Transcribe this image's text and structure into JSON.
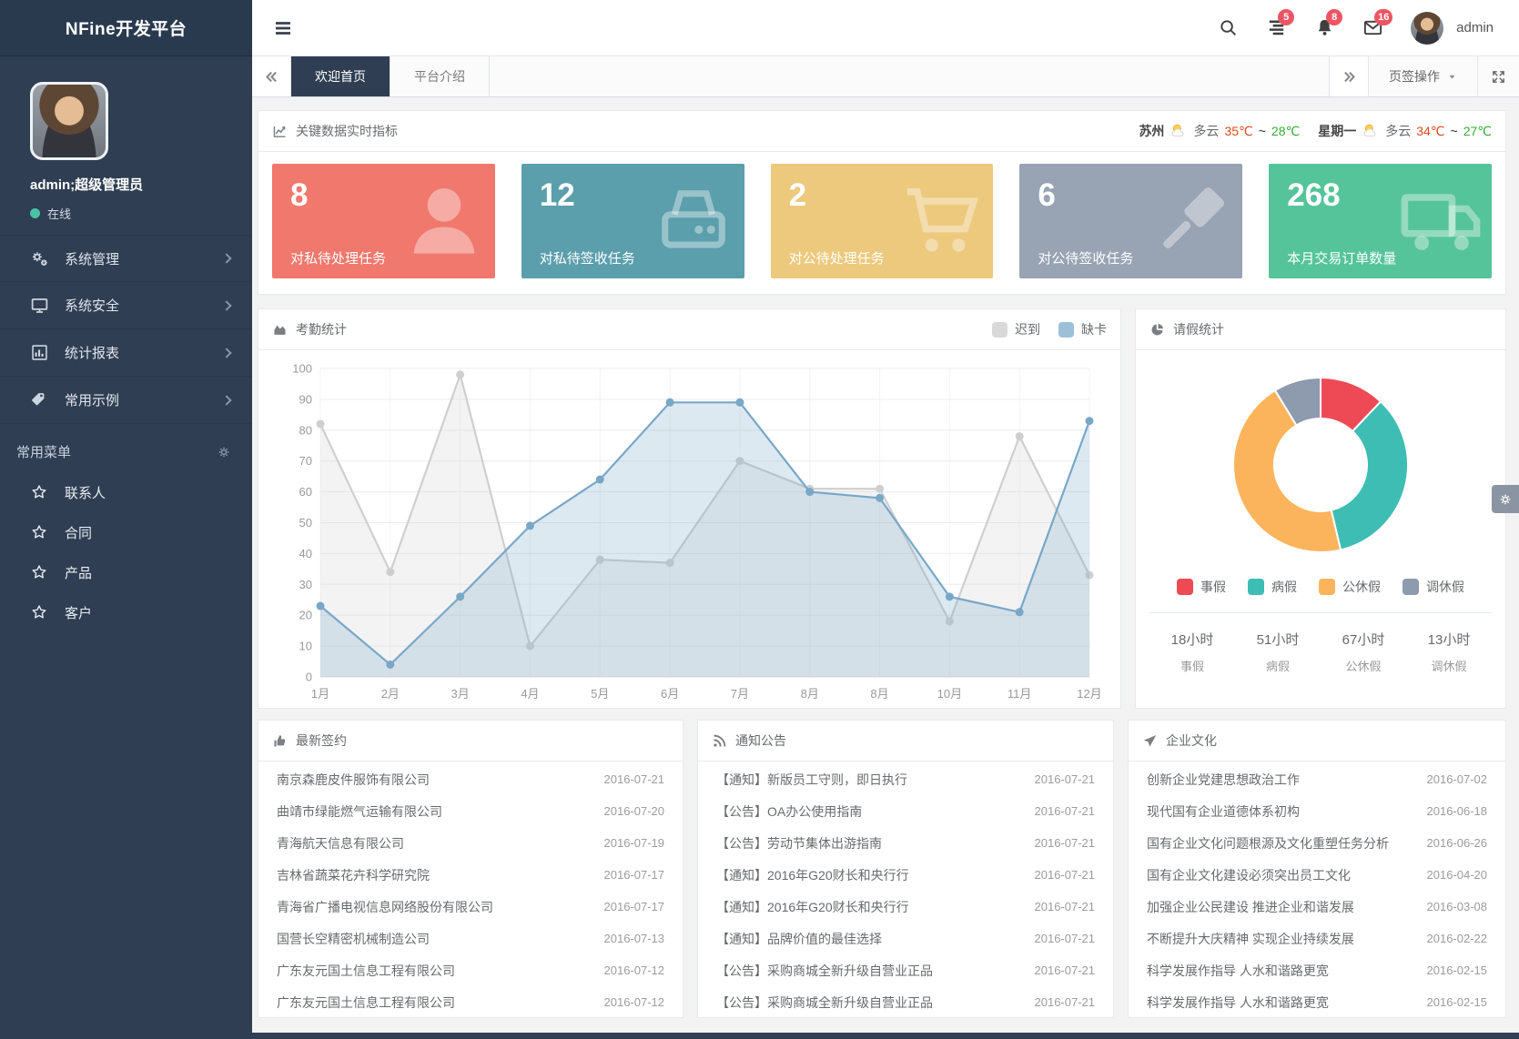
{
  "app": {
    "logo_title": "NFine开发平台"
  },
  "topbar": {
    "user": "admin",
    "badges": {
      "tasks": "5",
      "alerts": "8",
      "mail": "16"
    }
  },
  "tabbar": {
    "tabs": [
      {
        "label": "欢迎首页",
        "active": true
      },
      {
        "label": "平台介绍",
        "active": false
      }
    ],
    "ops_label": "页签操作"
  },
  "sidebar": {
    "user_name": "admin;超级管理员",
    "status": "在线",
    "menu": [
      {
        "label": "系统管理",
        "icon": "gears-icon"
      },
      {
        "label": "系统安全",
        "icon": "monitor-icon"
      },
      {
        "label": "统计报表",
        "icon": "bar-chart-icon"
      },
      {
        "label": "常用示例",
        "icon": "tags-icon"
      }
    ],
    "quick_title": "常用菜单",
    "quick": [
      {
        "label": "联系人"
      },
      {
        "label": "合同"
      },
      {
        "label": "产品"
      },
      {
        "label": "客户"
      }
    ]
  },
  "metrics": {
    "title": "关键数据实时指标",
    "weather": {
      "city": "苏州",
      "cond1": "多云",
      "hi1": "35℃",
      "lo1": "28℃",
      "sep": "~",
      "day": "星期一",
      "cond2": "多云",
      "hi2": "34℃",
      "lo2": "27℃"
    },
    "cards": [
      {
        "value": "8",
        "label": "对私待处理任务",
        "color": "#f0786d",
        "icon": "user-icon"
      },
      {
        "value": "12",
        "label": "对私待签收任务",
        "color": "#5b9eac",
        "icon": "drive-icon"
      },
      {
        "value": "2",
        "label": "对公待处理任务",
        "color": "#ecc97d",
        "icon": "cart-icon"
      },
      {
        "value": "6",
        "label": "对公待签收任务",
        "color": "#98a3b3",
        "icon": "gavel-icon"
      },
      {
        "value": "268",
        "label": "本月交易订单数量",
        "color": "#55c49a",
        "icon": "truck-icon"
      }
    ]
  },
  "chart_data": [
    {
      "type": "line",
      "title": "考勤统计",
      "categories": [
        "1月",
        "2月",
        "3月",
        "4月",
        "5月",
        "6月",
        "7月",
        "8月",
        "8月",
        "10月",
        "11月",
        "12月"
      ],
      "series": [
        {
          "name": "迟到",
          "color": "#cfcfcf",
          "fill": "rgba(208,208,208,0.25)",
          "legend_color": "#d9d9d9",
          "values": [
            82,
            34,
            98,
            10,
            38,
            37,
            70,
            61,
            61,
            18,
            78,
            33
          ]
        },
        {
          "name": "缺卡",
          "color": "#78a7c8",
          "fill": "rgba(120,167,200,0.25)",
          "legend_color": "#9cc0d8",
          "values": [
            23,
            4,
            26,
            49,
            64,
            89,
            89,
            60,
            58,
            26,
            21,
            83
          ]
        }
      ],
      "ylim": [
        0,
        100
      ],
      "ystep": 10,
      "grid": true,
      "legend_position": "top-right"
    },
    {
      "type": "pie",
      "title": "请假统计",
      "donut": true,
      "slices": [
        {
          "label": "事假",
          "value": 18,
          "hours": "18小时",
          "color": "#ee4a55"
        },
        {
          "label": "病假",
          "value": 51,
          "hours": "51小时",
          "color": "#3dbdb3"
        },
        {
          "label": "公休假",
          "value": 67,
          "hours": "67小时",
          "color": "#fcb45c"
        },
        {
          "label": "调休假",
          "value": 13,
          "hours": "13小时",
          "color": "#8e9aae"
        }
      ]
    }
  ],
  "bottom_panels": [
    {
      "title": "最新签约",
      "icon": "thumbs-up-icon",
      "items": [
        {
          "text": "南京森鹿皮件服饰有限公司",
          "date": "2016-07-21"
        },
        {
          "text": "曲靖市绿能燃气运输有限公司",
          "date": "2016-07-20"
        },
        {
          "text": "青海航天信息有限公司",
          "date": "2016-07-19"
        },
        {
          "text": "吉林省蔬菜花卉科学研究院",
          "date": "2016-07-17"
        },
        {
          "text": "青海省广播电视信息网络股份有限公司",
          "date": "2016-07-17"
        },
        {
          "text": "国营长空精密机械制造公司",
          "date": "2016-07-13"
        },
        {
          "text": "广东友元国土信息工程有限公司",
          "date": "2016-07-12"
        },
        {
          "text": "广东友元国土信息工程有限公司",
          "date": "2016-07-12"
        }
      ]
    },
    {
      "title": "通知公告",
      "icon": "rss-icon",
      "items": [
        {
          "text": "【通知】新版员工守则，即日执行",
          "date": "2016-07-21"
        },
        {
          "text": "【公告】OA办公使用指南",
          "date": "2016-07-21"
        },
        {
          "text": "【公告】劳动节集体出游指南",
          "date": "2016-07-21"
        },
        {
          "text": "【通知】2016年G20财长和央行行",
          "date": "2016-07-21"
        },
        {
          "text": "【通知】2016年G20财长和央行行",
          "date": "2016-07-21"
        },
        {
          "text": "【通知】品牌价值的最佳选择",
          "date": "2016-07-21"
        },
        {
          "text": "【公告】采购商城全新升级自营业正品",
          "date": "2016-07-21"
        },
        {
          "text": "【公告】采购商城全新升级自营业正品",
          "date": "2016-07-21"
        }
      ]
    },
    {
      "title": "企业文化",
      "icon": "paper-plane-icon",
      "items": [
        {
          "text": "创新企业党建思想政治工作",
          "date": "2016-07-02"
        },
        {
          "text": "现代国有企业道德体系初构",
          "date": "2016-06-18"
        },
        {
          "text": "国有企业文化问题根源及文化重塑任务分析",
          "date": "2016-06-26"
        },
        {
          "text": "国有企业文化建设必须突出员工文化",
          "date": "2016-04-20"
        },
        {
          "text": "加强企业公民建设 推进企业和谐发展",
          "date": "2016-03-08"
        },
        {
          "text": "不断提升大庆精神 实现企业持续发展",
          "date": "2016-02-22"
        },
        {
          "text": "科学发展作指导 人水和谐路更宽",
          "date": "2016-02-15"
        },
        {
          "text": "科学发展作指导 人水和谐路更宽",
          "date": "2016-02-15"
        }
      ]
    }
  ]
}
